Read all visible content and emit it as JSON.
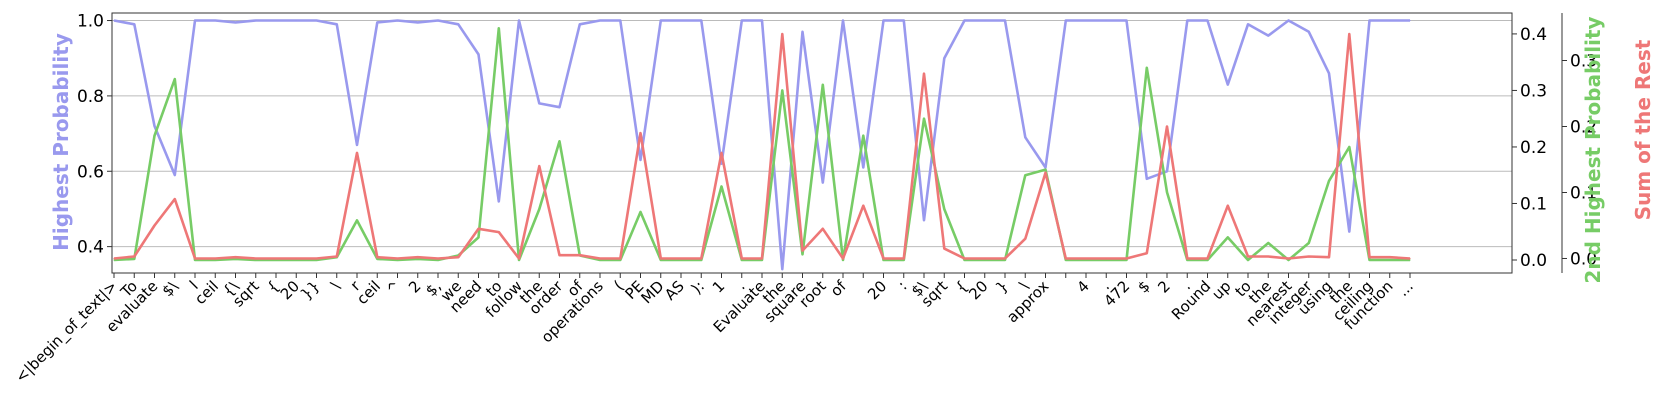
{
  "chart_data": {
    "type": "line",
    "x": [
      "<|begin_of_text|>",
      "To",
      "evaluate",
      "$\\",
      "l",
      "ceil",
      "{\\",
      "sqrt",
      "{",
      "20",
      "}}",
      "\\",
      "r",
      "ceil",
      "^",
      "2",
      "$,",
      "we",
      "need",
      "to",
      "follow",
      "the",
      "order",
      "of",
      "operations",
      "(",
      "PE",
      "MD",
      "AS",
      "):",
      "1",
      ".",
      "Evaluate",
      "the",
      "square",
      "root",
      "of",
      "",
      "20",
      ":",
      "$\\",
      "sqrt",
      "{",
      "20",
      "}",
      "\\",
      "approx",
      "",
      "4",
      ".",
      "472",
      "$",
      "2",
      ".",
      "Round",
      "up",
      "to",
      "the",
      "nearest",
      "integer",
      "using",
      "the",
      "ceiling",
      "function",
      "..."
    ],
    "series": [
      {
        "name": "Highest Probability",
        "axis": "left",
        "color": "#9999ee",
        "values": [
          1.0,
          0.99,
          0.72,
          0.59,
          1.0,
          1.0,
          0.995,
          1.0,
          1.0,
          1.0,
          1.0,
          0.99,
          0.67,
          0.995,
          1.0,
          0.995,
          1.0,
          0.99,
          0.91,
          0.52,
          1.0,
          0.78,
          0.77,
          0.99,
          1.0,
          1.0,
          0.63,
          1.0,
          1.0,
          1.0,
          0.62,
          1.0,
          1.0,
          0.34,
          0.97,
          0.57,
          1.0,
          0.61,
          1.0,
          1.0,
          0.47,
          0.9,
          1.0,
          1.0,
          1.0,
          0.69,
          0.61,
          1.0,
          1.0,
          1.0,
          1.0,
          0.58,
          0.6,
          1.0,
          1.0,
          0.83,
          0.99,
          0.96,
          1.0,
          0.97,
          0.86,
          0.44,
          1.0,
          1.0,
          1.0
        ]
      },
      {
        "name": "2nd Highest Probability",
        "axis": "right2",
        "color": "#77cc66",
        "values": [
          0.0,
          0.002,
          0.22,
          0.32,
          0.0,
          0.0,
          0.002,
          0.0,
          0.0,
          0.0,
          0.0,
          0.005,
          0.07,
          0.002,
          0.0,
          0.002,
          0.0,
          0.008,
          0.04,
          0.41,
          0.0,
          0.09,
          0.21,
          0.008,
          0.0,
          0.0,
          0.085,
          0.0,
          0.0,
          0.0,
          0.13,
          0.0,
          0.0,
          0.3,
          0.01,
          0.31,
          0.0,
          0.22,
          0.0,
          0.0,
          0.25,
          0.09,
          0.0,
          0.0,
          0.0,
          0.15,
          0.16,
          0.0,
          0.0,
          0.0,
          0.0,
          0.34,
          0.12,
          0.0,
          0.0,
          0.04,
          0.0,
          0.03,
          0.0,
          0.03,
          0.14,
          0.2,
          0.0,
          0.0,
          0.0
        ]
      },
      {
        "name": "Sum of the Rest",
        "axis": "right",
        "color": "#ee7777",
        "values": [
          0.0,
          0.003,
          0.05,
          0.09,
          0.0,
          0.0,
          0.002,
          0.0,
          0.0,
          0.0,
          0.0,
          0.003,
          0.16,
          0.002,
          0.0,
          0.002,
          0.0,
          0.002,
          0.045,
          0.04,
          0.0,
          0.14,
          0.005,
          0.005,
          0.0,
          0.0,
          0.19,
          0.0,
          0.0,
          0.0,
          0.16,
          0.0,
          0.0,
          0.34,
          0.012,
          0.045,
          0.0,
          0.08,
          0.0,
          0.0,
          0.28,
          0.015,
          0.0,
          0.0,
          0.0,
          0.03,
          0.13,
          0.0,
          0.0,
          0.0,
          0.0,
          0.008,
          0.2,
          0.0,
          0.0,
          0.08,
          0.003,
          0.003,
          0.0,
          0.003,
          0.002,
          0.34,
          0.002,
          0.002,
          0.0
        ]
      }
    ],
    "ylabel_left": "Highest Probability",
    "ylabel_right2": "2nd Highest Probability",
    "ylabel_right": "Sum of the Rest",
    "ylim_left": [
      0.33,
      1.02
    ],
    "ylim_right2": [
      -0.023,
      0.437
    ],
    "ylim_right": [
      -0.022,
      0.372
    ],
    "yticks_left": [
      "0.4",
      "0.6",
      "0.8",
      "1.0"
    ],
    "yticks_right2": [
      "0.0",
      "0.1",
      "0.2",
      "0.3",
      "0.4"
    ],
    "yticks_right": [
      "0.0",
      "0.1",
      "0.2",
      "0.3"
    ],
    "grid": "horizontal"
  }
}
